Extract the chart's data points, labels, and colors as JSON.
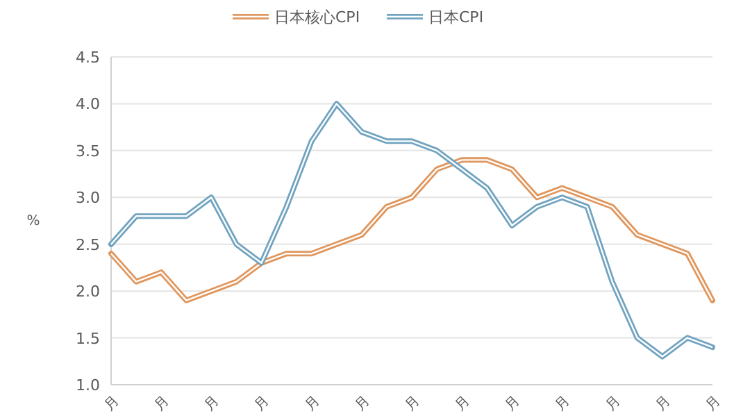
{
  "chart_data": {
    "type": "line",
    "ylabel": "%",
    "categories": [
      "月",
      null,
      "月",
      null,
      "月",
      null,
      "月",
      null,
      "月",
      null,
      "月",
      null,
      "月",
      null,
      "月",
      null,
      "月",
      null,
      "月",
      null,
      "月",
      null,
      "月",
      null,
      "月"
    ],
    "series": [
      {
        "name": "日本核心CPI",
        "color": "#e0975e",
        "values": [
          2.4,
          2.1,
          2.2,
          1.9,
          2.0,
          2.1,
          2.3,
          2.4,
          2.4,
          2.5,
          2.6,
          2.9,
          3.0,
          3.3,
          3.4,
          3.4,
          3.3,
          3.0,
          3.1,
          3.0,
          2.9,
          2.6,
          2.5,
          2.4,
          1.9
        ]
      },
      {
        "name": "日本CPI",
        "color": "#72a4c0",
        "values": [
          2.5,
          2.8,
          2.8,
          2.8,
          3.0,
          2.5,
          2.3,
          2.9,
          3.6,
          4.0,
          3.7,
          3.6,
          3.6,
          3.5,
          3.3,
          3.1,
          2.7,
          2.9,
          3.0,
          2.9,
          2.1,
          1.5,
          1.3,
          1.5,
          1.4
        ]
      }
    ],
    "ylim": [
      1.0,
      4.5
    ],
    "yticks": [
      {
        "value": 1.0,
        "label": "1.0"
      },
      {
        "value": 1.5,
        "label": "1.5"
      },
      {
        "value": 2.0,
        "label": "2.0"
      },
      {
        "value": 2.5,
        "label": "2.5"
      },
      {
        "value": 3.0,
        "label": "3.0"
      },
      {
        "value": 3.5,
        "label": "3.5"
      },
      {
        "value": 4.0,
        "label": "4.0"
      },
      {
        "value": 4.5,
        "label": "4.5"
      }
    ],
    "grid": "y",
    "legend": "top",
    "marker": "none",
    "line_style": "solid"
  }
}
